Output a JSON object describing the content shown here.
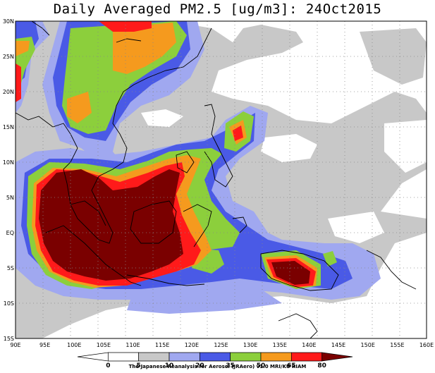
{
  "title": "Daily Averaged PM2.5 [ug/m3]: 24Oct2015",
  "credit": "The Japanese Reanalysis for Aerosol (JRAero) v1.0 MRI/KU RIAM",
  "lat_ticks": [
    "30N",
    "25N",
    "20N",
    "15N",
    "10N",
    "5N",
    "EQ",
    "5S",
    "10S",
    "15S"
  ],
  "lon_ticks": [
    "90E",
    "95E",
    "100E",
    "105E",
    "110E",
    "115E",
    "120E",
    "125E",
    "130E",
    "135E",
    "140E",
    "145E",
    "150E",
    "155E",
    "160E"
  ],
  "legend": {
    "labels": [
      "0",
      "5",
      "10",
      "20",
      "35",
      "50",
      "65",
      "80"
    ],
    "colors": [
      "#ffffff",
      "#ffffff",
      "#c8c8c8",
      "#a0a8f0",
      "#4a5ae6",
      "#8ccf3c",
      "#f59a1e",
      "#ff1a1a",
      "#7a0000"
    ]
  },
  "colors": {
    "grey": "#c8c8c8",
    "light_blue": "#a0a8f0",
    "blue": "#4a5ae6",
    "green": "#8ccf3c",
    "orange": "#f59a1e",
    "red": "#ff1a1a",
    "dark_red": "#7a0000"
  }
}
